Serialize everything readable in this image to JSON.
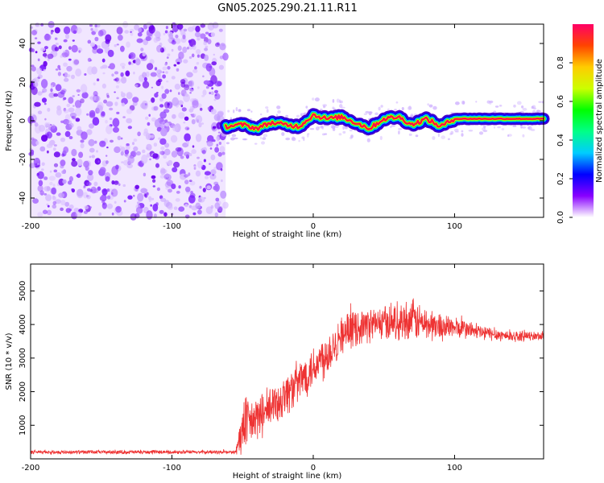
{
  "chart_data": [
    {
      "type": "heatmap",
      "title": "GN05.2025.290.21.11.R11",
      "xlabel": "Height of straight line (km)",
      "ylabel": "Frequency (Hz)",
      "xlim": [
        -200,
        163
      ],
      "ylim": [
        -50,
        50
      ],
      "xticks": [
        -200,
        -100,
        0,
        100
      ],
      "yticks": [
        -40,
        -20,
        0,
        20,
        40
      ],
      "colorbar": {
        "label": "Normalized spectral amplitude",
        "range": [
          0,
          1
        ],
        "ticks": [
          0,
          0.2,
          0.4,
          0.6,
          0.8
        ],
        "tick_labels": [
          "0.0",
          "0.2",
          "0.4",
          "0.6",
          "0.8"
        ],
        "colormap": [
          "#ffffff",
          "#8800ff",
          "#0000ff",
          "#00ccff",
          "#00ff88",
          "#00ff00",
          "#ccff00",
          "#ffcc00",
          "#ff4400",
          "#ff0066"
        ]
      },
      "noise_region": {
        "x_range": [
          -200,
          -62
        ],
        "level": "low (0.0-0.15)"
      },
      "signal_track": {
        "x": [
          -62,
          -50,
          -40,
          -30,
          -20,
          -10,
          0,
          10,
          20,
          30,
          40,
          50,
          60,
          70,
          80,
          90,
          100,
          110,
          120,
          130,
          140,
          150,
          163
        ],
        "frequency_hz": [
          -3,
          -2,
          -4,
          -1,
          -2,
          -3,
          3,
          1,
          2,
          -1,
          -4,
          1,
          2,
          -2,
          1,
          -3,
          1,
          1,
          1,
          1,
          1,
          1,
          1
        ]
      }
    },
    {
      "type": "line",
      "xlabel": "Height of straight line (km)",
      "ylabel": "SNR (10 * v/v)",
      "xlim": [
        -200,
        163
      ],
      "ylim": [
        0,
        5800
      ],
      "xticks": [
        -200,
        -100,
        0,
        100
      ],
      "yticks": [
        1000,
        2000,
        3000,
        4000,
        5000
      ],
      "color": "#ee3333",
      "series": [
        {
          "name": "SNR",
          "envelope_x": [
            -200,
            -55,
            -50,
            -40,
            -30,
            -20,
            -10,
            0,
            10,
            20,
            30,
            40,
            50,
            60,
            70,
            80,
            90,
            100,
            110,
            120,
            130,
            140,
            150,
            163
          ],
          "envelope_mean": [
            200,
            200,
            900,
            1200,
            1500,
            1900,
            2300,
            2750,
            3150,
            3700,
            3900,
            4000,
            4050,
            4100,
            4150,
            4000,
            3950,
            3900,
            3850,
            3750,
            3700,
            3650,
            3650,
            3650
          ],
          "envelope_spread": [
            60,
            60,
            900,
            700,
            700,
            700,
            700,
            700,
            750,
            600,
            550,
            550,
            550,
            600,
            650,
            550,
            450,
            350,
            300,
            250,
            200,
            180,
            150,
            150
          ]
        }
      ]
    }
  ]
}
